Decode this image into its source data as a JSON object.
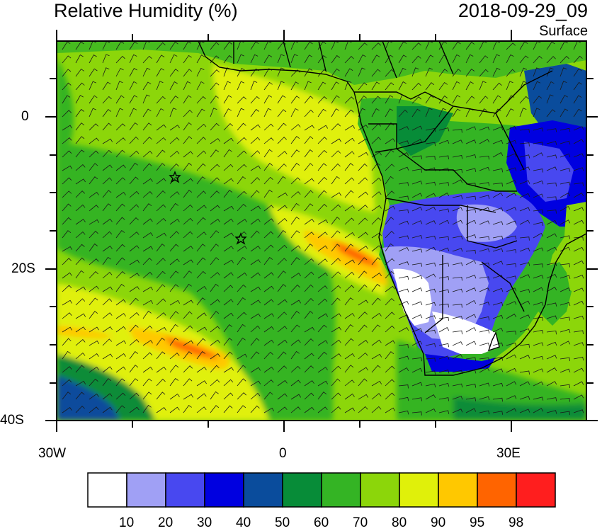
{
  "header": {
    "title": "Relative Humidity (%)",
    "datetime": "2018-09-29_09",
    "level": "Surface"
  },
  "map": {
    "lat_labels": [
      "0",
      "20S",
      "40S"
    ],
    "lon_labels": [
      "30W",
      "0",
      "30E"
    ],
    "colors": {
      "rh_10": "#ffffff",
      "rh_20": "#a0a0f5",
      "rh_30": "#4848f0",
      "rh_40": "#0000e0",
      "rh_50": "#0a4c9c",
      "rh_60": "#078c38",
      "rh_70": "#34b424",
      "rh_80": "#8cd60a",
      "rh_90": "#e0f00a",
      "rh_95": "#ffc800",
      "rh_98": "#ff6400",
      "rh_max": "#ff1e1e"
    }
  },
  "legend": {
    "labels": [
      "10",
      "20",
      "30",
      "40",
      "50",
      "60",
      "70",
      "80",
      "90",
      "95",
      "98"
    ],
    "colors": [
      "#ffffff",
      "#a0a0f5",
      "#4848f0",
      "#0000e0",
      "#0a4c9c",
      "#078c38",
      "#34b424",
      "#8cd60a",
      "#e0f00a",
      "#ffc800",
      "#ff6400",
      "#ff1e1e"
    ]
  }
}
